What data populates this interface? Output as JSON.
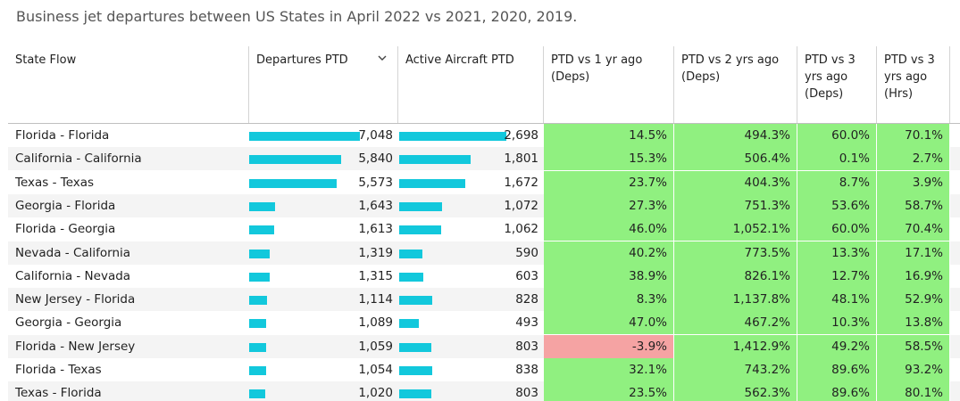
{
  "title": "Business jet departures between US States in April 2022 vs 2021, 2020, 2019.",
  "colors": {
    "bar": "#12c8dc",
    "positive": "#90f080",
    "negative": "#f5a3a3"
  },
  "headers": {
    "state": "State Flow",
    "departures": "Departures PTD",
    "aircraft": "Active Aircraft PTD",
    "vs1": "PTD vs 1 yr ago (Deps)",
    "vs2": "PTD vs 2 yrs ago (Deps)",
    "vs3d": "PTD vs 3 yrs ago (Deps)",
    "vs3h": "PTD vs 3 yrs ago (Hrs)"
  },
  "sort_icon": "chevron-down-icon",
  "chart_data": {
    "type": "table",
    "columns": [
      "State Flow",
      "Departures PTD",
      "Active Aircraft PTD",
      "PTD vs 1 yr ago (Deps)",
      "PTD vs 2 yrs ago (Deps)",
      "PTD vs 3 yrs ago (Deps)",
      "PTD vs 3 yrs ago (Hrs)"
    ],
    "rows": [
      {
        "state": "Florida - Florida",
        "departures": 7048,
        "departures_label": "7,048",
        "aircraft": 2698,
        "aircraft_label": "2,698",
        "vs1": "14.5%",
        "vs2": "494.3%",
        "vs3d": "60.0%",
        "vs3h": "70.1%"
      },
      {
        "state": "California - California",
        "departures": 5840,
        "departures_label": "5,840",
        "aircraft": 1801,
        "aircraft_label": "1,801",
        "vs1": "15.3%",
        "vs2": "506.4%",
        "vs3d": "0.1%",
        "vs3h": "2.7%"
      },
      {
        "state": "Texas - Texas",
        "departures": 5573,
        "departures_label": "5,573",
        "aircraft": 1672,
        "aircraft_label": "1,672",
        "vs1": "23.7%",
        "vs2": "404.3%",
        "vs3d": "8.7%",
        "vs3h": "3.9%"
      },
      {
        "state": "Georgia - Florida",
        "departures": 1643,
        "departures_label": "1,643",
        "aircraft": 1072,
        "aircraft_label": "1,072",
        "vs1": "27.3%",
        "vs2": "751.3%",
        "vs3d": "53.6%",
        "vs3h": "58.7%"
      },
      {
        "state": "Florida - Georgia",
        "departures": 1613,
        "departures_label": "1,613",
        "aircraft": 1062,
        "aircraft_label": "1,062",
        "vs1": "46.0%",
        "vs2": "1,052.1%",
        "vs3d": "60.0%",
        "vs3h": "70.4%"
      },
      {
        "state": "Nevada - California",
        "departures": 1319,
        "departures_label": "1,319",
        "aircraft": 590,
        "aircraft_label": "590",
        "vs1": "40.2%",
        "vs2": "773.5%",
        "vs3d": "13.3%",
        "vs3h": "17.1%"
      },
      {
        "state": "California - Nevada",
        "departures": 1315,
        "departures_label": "1,315",
        "aircraft": 603,
        "aircraft_label": "603",
        "vs1": "38.9%",
        "vs2": "826.1%",
        "vs3d": "12.7%",
        "vs3h": "16.9%"
      },
      {
        "state": "New Jersey - Florida",
        "departures": 1114,
        "departures_label": "1,114",
        "aircraft": 828,
        "aircraft_label": "828",
        "vs1": "8.3%",
        "vs2": "1,137.8%",
        "vs3d": "48.1%",
        "vs3h": "52.9%"
      },
      {
        "state": "Georgia - Georgia",
        "departures": 1089,
        "departures_label": "1,089",
        "aircraft": 493,
        "aircraft_label": "493",
        "vs1": "47.0%",
        "vs2": "467.2%",
        "vs3d": "10.3%",
        "vs3h": "13.8%"
      },
      {
        "state": "Florida - New Jersey",
        "departures": 1059,
        "departures_label": "1,059",
        "aircraft": 803,
        "aircraft_label": "803",
        "vs1": "-3.9%",
        "vs2": "1,412.9%",
        "vs3d": "49.2%",
        "vs3h": "58.5%"
      },
      {
        "state": "Florida - Texas",
        "departures": 1054,
        "departures_label": "1,054",
        "aircraft": 838,
        "aircraft_label": "838",
        "vs1": "32.1%",
        "vs2": "743.2%",
        "vs3d": "89.6%",
        "vs3h": "93.2%"
      },
      {
        "state": "Texas - Florida",
        "departures": 1020,
        "departures_label": "1,020",
        "aircraft": 803,
        "aircraft_label": "803",
        "vs1": "23.5%",
        "vs2": "562.3%",
        "vs3d": "89.6%",
        "vs3h": "80.1%"
      }
    ]
  }
}
